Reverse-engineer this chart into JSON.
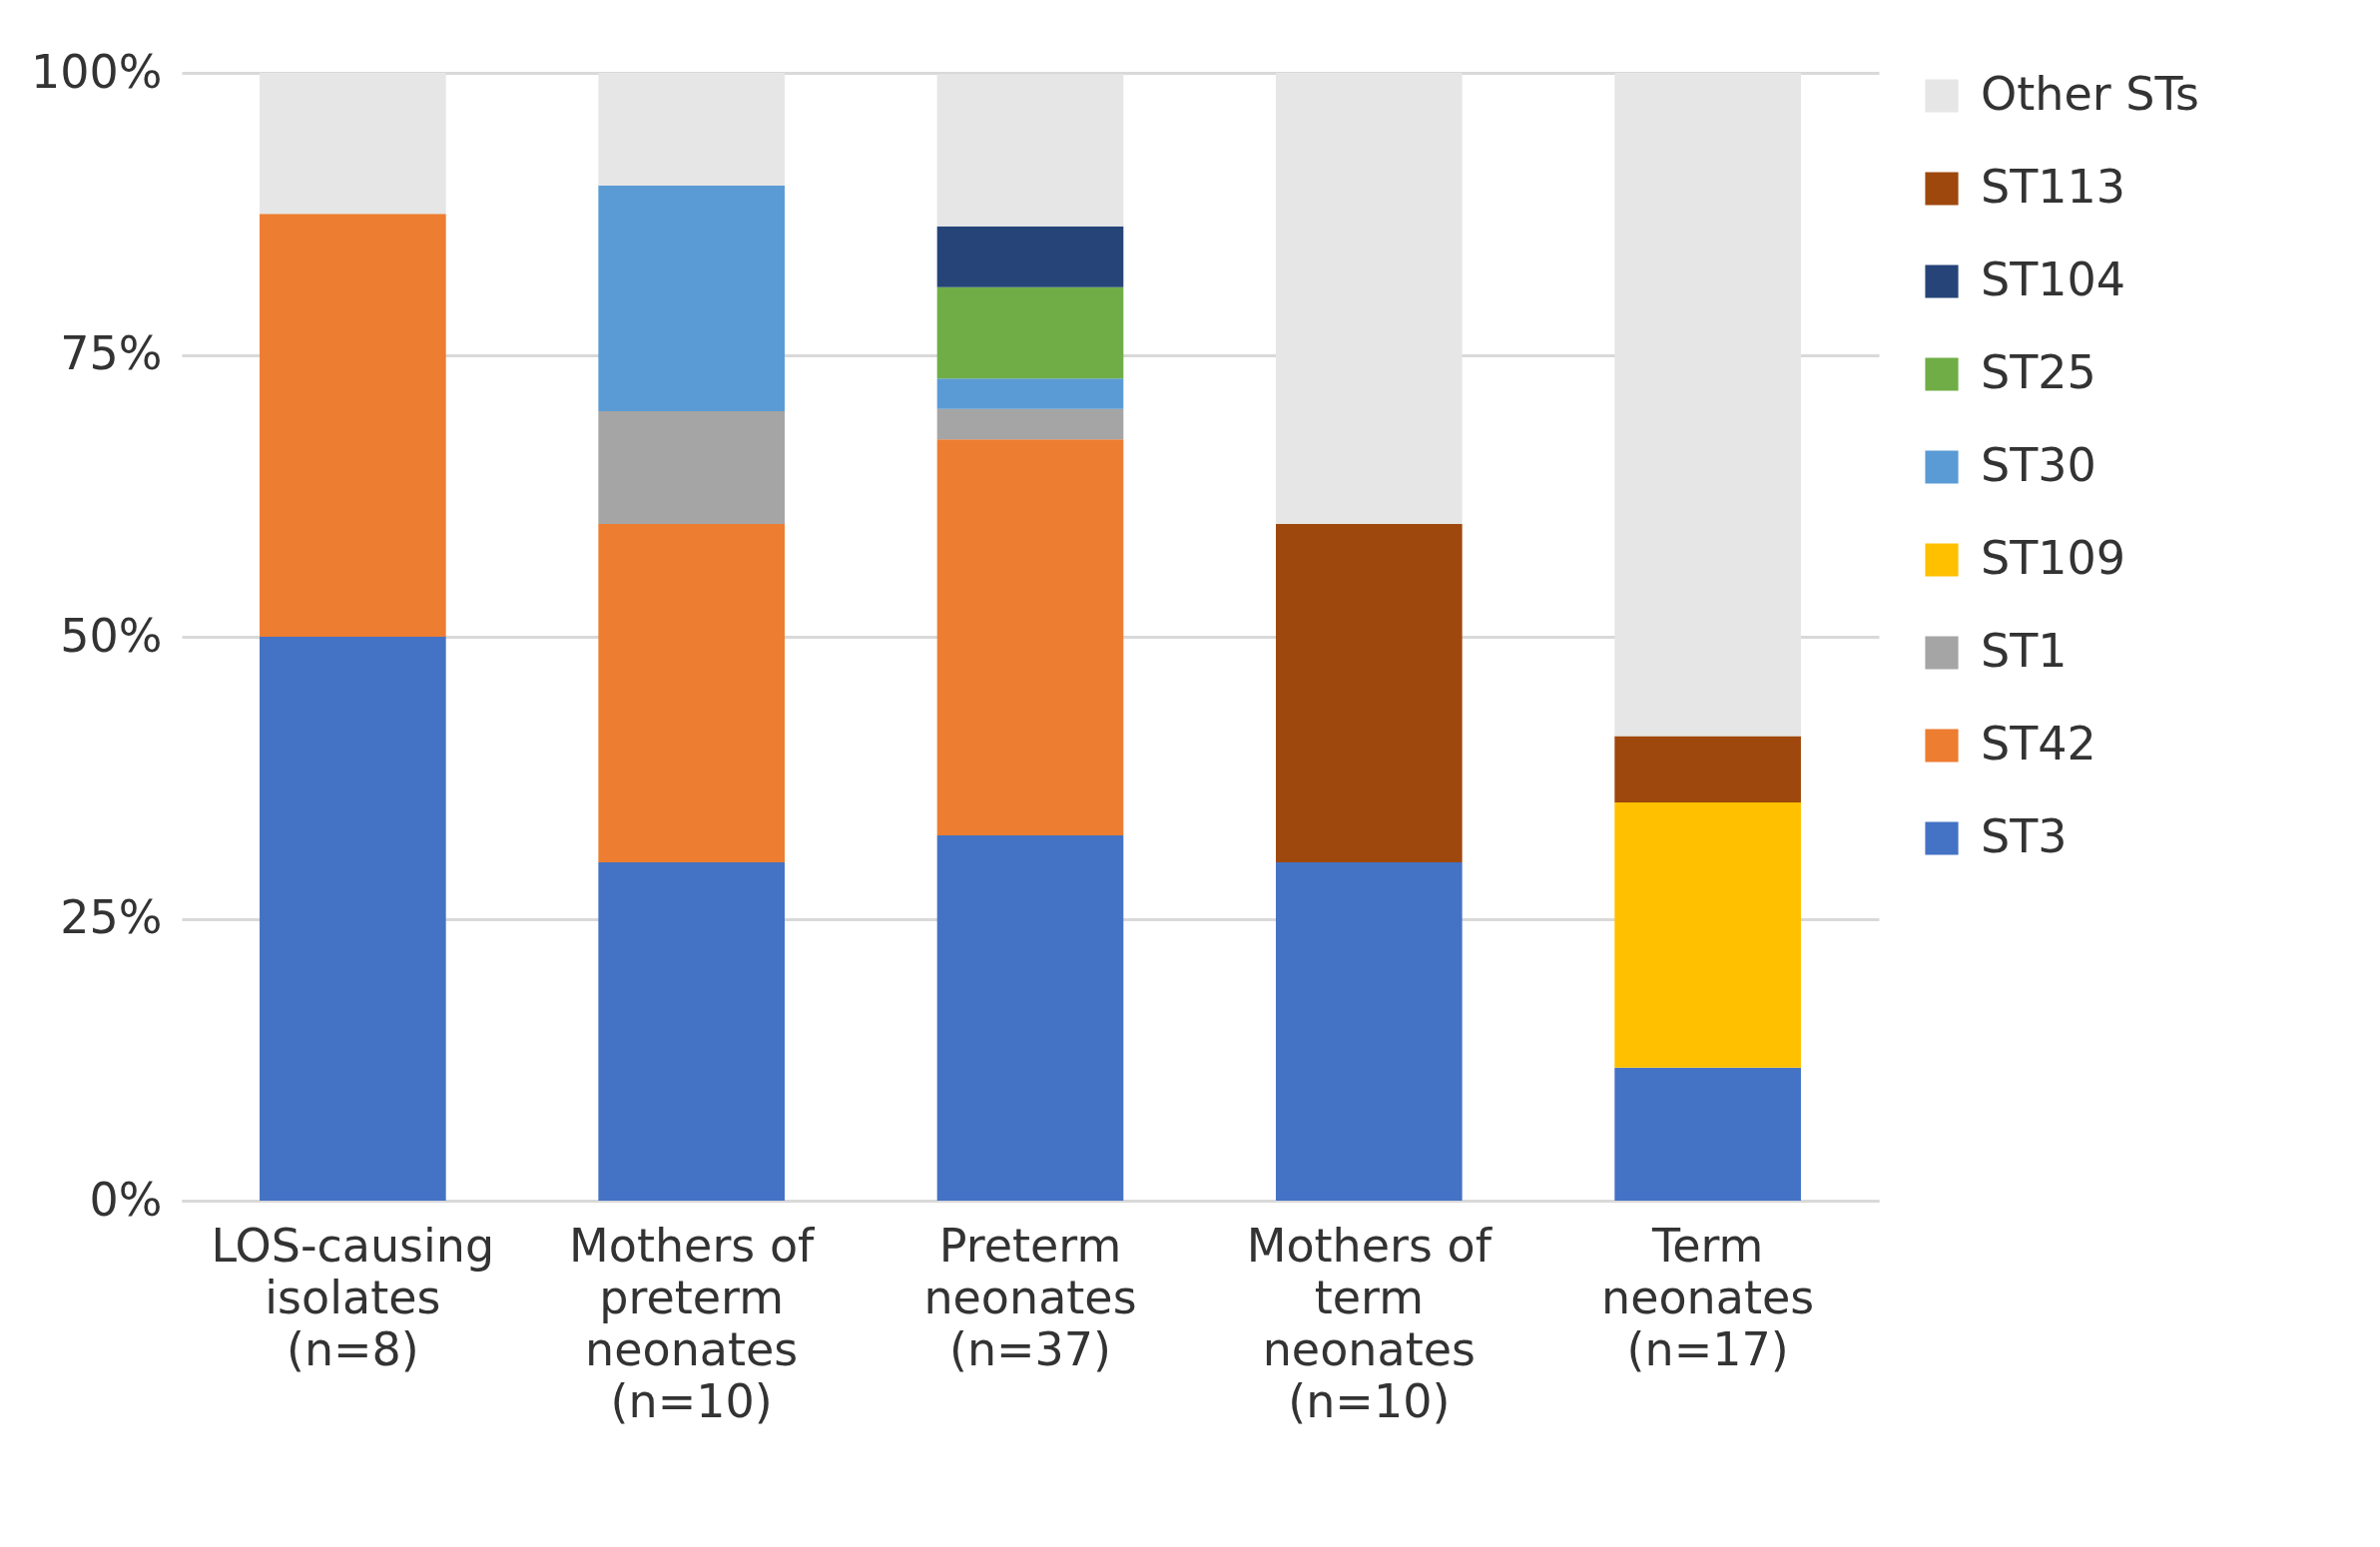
{
  "chart_data": {
    "type": "bar",
    "stacked": true,
    "categories": [
      "LOS-causing\nisolates\n(n=8)",
      "Mothers of\npreterm\nneonates\n(n=10)",
      "Preterm\nneonates\n(n=37)",
      "Mothers of\nterm\nneonates\n(n=10)",
      "Term\nneonates\n(n=17)"
    ],
    "series": [
      {
        "name": "ST3",
        "color": "#4472c4",
        "values": [
          50,
          30,
          32.4,
          30,
          11.8
        ]
      },
      {
        "name": "ST42",
        "color": "#ed7d31",
        "values": [
          37.5,
          30,
          35.1,
          null,
          null
        ]
      },
      {
        "name": "ST1",
        "color": "#a5a5a5",
        "values": [
          null,
          10,
          2.7,
          null,
          null
        ]
      },
      {
        "name": "ST109",
        "color": "#ffc000",
        "values": [
          null,
          null,
          null,
          null,
          23.5
        ]
      },
      {
        "name": "ST30",
        "color": "#5b9bd5",
        "values": [
          null,
          20,
          2.7,
          null,
          null
        ]
      },
      {
        "name": "ST25",
        "color": "#70ad47",
        "values": [
          null,
          null,
          8.1,
          null,
          null
        ]
      },
      {
        "name": "ST104",
        "color": "#264478",
        "values": [
          null,
          null,
          5.4,
          null,
          null
        ]
      },
      {
        "name": "ST113",
        "color": "#9e480e",
        "values": [
          null,
          null,
          null,
          30,
          5.9
        ]
      },
      {
        "name": "Other STs",
        "color": "#e6e6e6",
        "values": [
          12.5,
          10,
          13.5,
          40,
          58.8
        ]
      }
    ],
    "ylim": [
      0,
      100
    ],
    "yticks": [
      {
        "value": 0,
        "label": "0%"
      },
      {
        "value": 25,
        "label": "25%"
      },
      {
        "value": 50,
        "label": "50%"
      },
      {
        "value": 75,
        "label": "75%"
      },
      {
        "value": 100,
        "label": "100%"
      }
    ],
    "grid": "y",
    "legend": "right"
  }
}
